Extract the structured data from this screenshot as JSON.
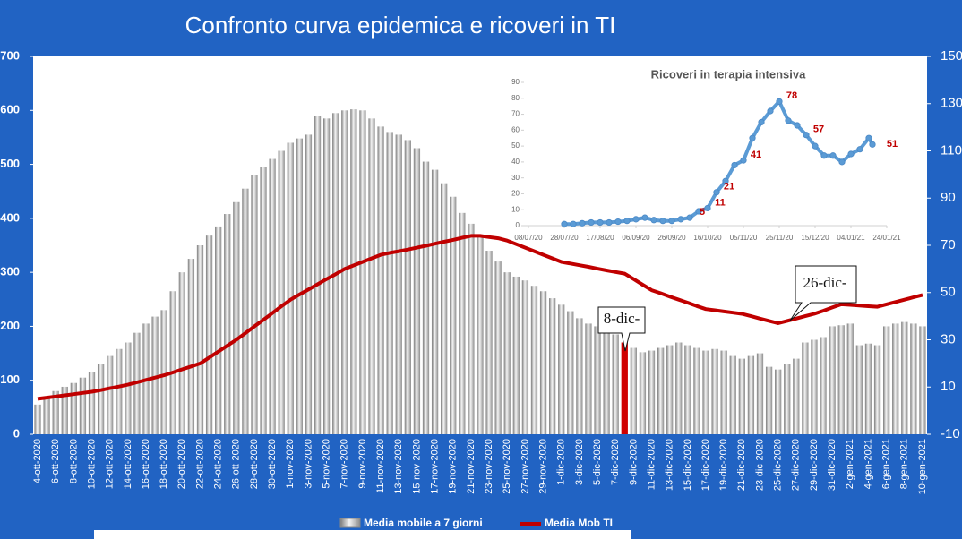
{
  "chart_data": [
    {
      "type": "bar",
      "title": "Confronto curva epidemica e ricoveri in TI",
      "categories": [
        "4-ott-2020",
        null,
        "6-ott-2020",
        null,
        "8-ott-2020",
        null,
        "10-ott-2020",
        null,
        "12-ott-2020",
        null,
        "14-ott-2020",
        null,
        "16-ott-2020",
        null,
        "18-ott-2020",
        null,
        "20-ott-2020",
        null,
        "22-ott-2020",
        null,
        "24-ott-2020",
        null,
        "26-ott-2020",
        null,
        "28-ott-2020",
        null,
        "30-ott-2020",
        null,
        "1-nov-2020",
        null,
        "3-nov-2020",
        null,
        "5-nov-2020",
        null,
        "7-nov-2020",
        null,
        "9-nov-2020",
        null,
        "11-nov-2020",
        null,
        "13-nov-2020",
        null,
        "15-nov-2020",
        null,
        "17-nov-2020",
        null,
        "19-nov-2020",
        null,
        "21-nov-2020",
        null,
        "23-nov-2020",
        null,
        "25-nov-2020",
        null,
        "27-nov-2020",
        null,
        "29-nov-2020",
        null,
        "1-dic-2020",
        null,
        "3-dic-2020",
        null,
        "5-dic-2020",
        null,
        "7-dic-2020",
        null,
        "9-dic-2020",
        null,
        "11-dic-2020",
        null,
        "13-dic-2020",
        null,
        "15-dic-2020",
        null,
        "17-dic-2020",
        null,
        "19-dic-2020",
        null,
        "21-dic-2020",
        null,
        "23-dic-2020",
        null,
        "25-dic-2020",
        null,
        "27-dic-2020",
        null,
        "29-dic-2020",
        null,
        "31-dic-2020",
        null,
        "2-gen-2021",
        null,
        "4-gen-2021",
        null,
        "6-gen-2021",
        null,
        "8-gen-2021",
        null,
        "10-gen-2021"
      ],
      "series": [
        {
          "name": "Media mobile a 7 giorni",
          "type": "bar",
          "color": "#b8b8b8",
          "highlight": {
            "index": 65,
            "color": "#d00000"
          },
          "values": [
            55,
            68,
            80,
            88,
            95,
            105,
            115,
            130,
            145,
            158,
            170,
            188,
            205,
            218,
            230,
            265,
            300,
            325,
            350,
            368,
            385,
            408,
            430,
            455,
            480,
            495,
            510,
            525,
            540,
            548,
            555,
            590,
            585,
            595,
            600,
            602,
            600,
            585,
            570,
            560,
            555,
            545,
            530,
            505,
            490,
            465,
            440,
            410,
            390,
            365,
            340,
            320,
            300,
            292,
            285,
            275,
            265,
            252,
            240,
            228,
            215,
            205,
            200,
            192,
            185,
            170,
            160,
            152,
            155,
            160,
            165,
            170,
            165,
            160,
            155,
            158,
            155,
            145,
            140,
            145,
            150,
            125,
            120,
            130,
            140,
            170,
            175,
            180,
            200,
            202,
            205,
            165,
            168,
            165,
            200,
            205,
            208,
            205,
            200
          ]
        },
        {
          "name": "Media Mob TI",
          "type": "line",
          "axis": "y2",
          "color": "#c00000",
          "values": [
            5,
            5.5,
            6,
            6.5,
            7,
            7.5,
            8,
            8.7,
            9.5,
            10.2,
            11,
            12,
            13,
            14,
            15,
            16.2,
            17.5,
            18.7,
            20,
            22.5,
            25,
            27.5,
            30,
            32.8,
            35.7,
            38.5,
            41.3,
            44.2,
            47,
            49.2,
            51.3,
            53.5,
            55.7,
            57.8,
            60,
            61.5,
            63,
            64.5,
            66,
            66.8,
            67.5,
            68.2,
            69,
            69.8,
            70.7,
            71.5,
            72.3,
            73.2,
            74,
            74,
            73.5,
            73,
            72,
            70.5,
            69,
            67.5,
            66,
            64.5,
            63,
            62.3,
            61.6,
            60.9,
            60.1,
            59.4,
            58.7,
            58,
            55.7,
            53.3,
            51,
            49.7,
            48.3,
            47,
            45.7,
            44.3,
            43,
            42.5,
            42,
            41.5,
            41,
            40,
            39,
            38,
            37,
            38,
            39,
            40,
            41,
            42.3,
            43.7,
            45,
            44.8,
            44.5,
            44.2,
            44,
            45,
            46,
            47,
            48,
            49
          ]
        }
      ],
      "ylim": [
        0,
        700
      ],
      "yticks": [
        0,
        100,
        200,
        300,
        400,
        500,
        600,
        700
      ],
      "y2lim": [
        -10,
        150
      ],
      "y2ticks": [
        -10,
        10,
        30,
        50,
        70,
        90,
        110,
        130,
        150
      ],
      "grid": false,
      "legend": "bottom",
      "annotations": [
        "8-dic-",
        "26-dic-"
      ]
    },
    {
      "type": "line",
      "title": "Ricoveri in terapia intensiva",
      "x": [
        "28/07/20",
        "02/08/20",
        "07/08/20",
        "12/08/20",
        "17/08/20",
        "22/08/20",
        "27/08/20",
        "01/09/20",
        "06/09/20",
        "11/09/20",
        "16/09/20",
        "21/09/20",
        "26/09/20",
        "01/10/20",
        "06/10/20",
        "11/10/20",
        "16/10/20",
        "21/10/20",
        "26/10/20",
        "31/10/20",
        "05/11/20",
        "10/11/20",
        "15/11/20",
        "20/11/20",
        "25/11/20",
        "30/11/20",
        "05/12/20",
        "10/12/20",
        "15/12/20",
        "20/12/20",
        "25/12/20",
        "30/12/20",
        "04/01/21",
        "09/01/21",
        "14/01/21",
        "16/01/21"
      ],
      "series": [
        {
          "name": "Ricoveri in terapia intensiva",
          "color": "#5b9bd5",
          "values": [
            1,
            1,
            1.5,
            2,
            2,
            2,
            2.5,
            3,
            4,
            5,
            3.5,
            3,
            3,
            4,
            5,
            9,
            11,
            21,
            28,
            38,
            41,
            55,
            65,
            72,
            78,
            66,
            63,
            57,
            50,
            44,
            44,
            40,
            45,
            48,
            55,
            51
          ]
        }
      ],
      "labeled_points": [
        14,
        16,
        17,
        20,
        24,
        27,
        35
      ],
      "label_color": "#c00000",
      "xlim": [
        "08/07/20",
        "24/01/21"
      ],
      "xticks": [
        "08/07/20",
        "28/07/20",
        "17/08/20",
        "06/09/20",
        "26/09/20",
        "16/10/20",
        "05/11/20",
        "25/11/20",
        "15/12/20",
        "04/01/21",
        "24/01/21"
      ],
      "ylim": [
        0,
        90
      ],
      "yticks": [
        0,
        10,
        20,
        30,
        40,
        50,
        60,
        70,
        80,
        90
      ]
    }
  ]
}
